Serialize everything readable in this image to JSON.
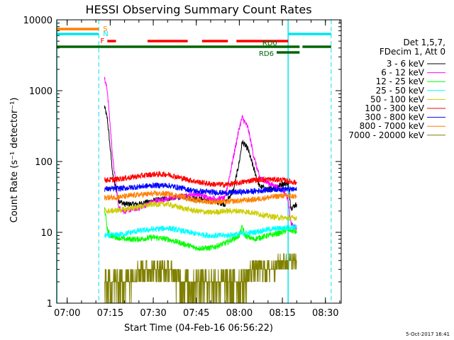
{
  "chart_data": {
    "type": "line",
    "title": "HESSI Observing Summary Count Rates",
    "ylabel": "Count Rate (s⁻¹ detector⁻¹)",
    "xlabel": "Start Time (04-Feb-16 06:56:22)",
    "y_scale": "log",
    "ylim": [
      1,
      10000
    ],
    "xlim": [
      "06:56:22",
      "08:35:30"
    ],
    "grid": false,
    "legend_position": "right",
    "x_ticks": [
      "07:00",
      "07:15",
      "07:30",
      "07:45",
      "08:00",
      "08:15",
      "08:30"
    ],
    "y_ticks": [
      "1",
      "10",
      "100",
      "1000",
      "10000"
    ],
    "legend_header": [
      "Det 1,5,7,",
      "FDecim 1, Att 0"
    ],
    "footer_date": "5-Oct-2017 16:41",
    "state_bars": [
      {
        "label": "S",
        "color": "#ff7f00",
        "segments": [
          [
            "06:56:22",
            "07:11:00"
          ]
        ]
      },
      {
        "label": "N",
        "color": "#00e5ee",
        "segments": [
          [
            "06:56:22",
            "07:11:00"
          ],
          [
            "08:17:00",
            "08:32:00"
          ]
        ]
      },
      {
        "label": "F",
        "color": "#ff0000",
        "segments": [
          [
            "07:14:00",
            "07:17:00"
          ],
          [
            "07:28:00",
            "07:42:00"
          ],
          [
            "07:47:00",
            "07:56:00"
          ],
          [
            "07:59:00",
            "08:17:00"
          ]
        ]
      },
      {
        "label": "RD0",
        "color": "#006400",
        "segments": [
          [
            "06:56:22",
            "08:21:00"
          ],
          [
            "08:22:00",
            "08:32:00"
          ]
        ]
      },
      {
        "label": "RD6",
        "color": "#006400",
        "segments": [
          [
            "08:13:00",
            "08:21:00"
          ]
        ]
      }
    ],
    "night_boundaries": [
      "06:56:22",
      "08:17:00"
    ],
    "saa_boundaries": [
      "07:11:00",
      "08:32:00"
    ],
    "series": [
      {
        "name": "3 - 6 keV",
        "color": "#000000",
        "x": [
          "07:13",
          "07:14",
          "07:16",
          "07:18",
          "07:20",
          "07:25",
          "07:30",
          "07:35",
          "07:40",
          "07:45",
          "07:50",
          "07:55",
          "07:58",
          "08:00",
          "08:01",
          "08:03",
          "08:05",
          "08:07",
          "08:10",
          "08:15",
          "08:17",
          "08:18",
          "08:20"
        ],
        "values": [
          600,
          400,
          60,
          28,
          25,
          25,
          28,
          30,
          32,
          30,
          28,
          25,
          40,
          100,
          190,
          150,
          80,
          45,
          40,
          48,
          50,
          22,
          25
        ]
      },
      {
        "name": "6 - 12 keV",
        "color": "#ff00ff",
        "x": [
          "07:13",
          "07:14",
          "07:16",
          "07:18",
          "07:20",
          "07:25",
          "07:30",
          "07:35",
          "07:40",
          "07:45",
          "07:50",
          "07:55",
          "07:58",
          "08:00",
          "08:01",
          "08:03",
          "08:05",
          "08:07",
          "08:10",
          "08:15",
          "08:17",
          "08:18",
          "08:20"
        ],
        "values": [
          1500,
          1000,
          100,
          22,
          20,
          22,
          27,
          30,
          32,
          35,
          30,
          30,
          120,
          300,
          420,
          300,
          120,
          60,
          50,
          40,
          30,
          13,
          11
        ]
      },
      {
        "name": "12 - 25 keV",
        "color": "#00ff00",
        "x": [
          "07:13",
          "07:14",
          "07:15",
          "07:20",
          "07:25",
          "07:30",
          "07:35",
          "07:40",
          "07:45",
          "07:50",
          "07:55",
          "08:00",
          "08:01",
          "08:02",
          "08:05",
          "08:10",
          "08:15",
          "08:17",
          "08:20"
        ],
        "values": [
          22,
          11,
          9,
          8,
          8,
          8.5,
          8,
          7,
          6,
          6,
          7,
          9,
          12,
          9,
          8,
          9,
          10,
          11,
          10
        ]
      },
      {
        "name": "25 - 50 keV",
        "color": "#00ffff",
        "x": [
          "07:13",
          "07:15",
          "07:20",
          "07:25",
          "07:30",
          "07:35",
          "07:40",
          "07:45",
          "07:50",
          "07:55",
          "08:00",
          "08:05",
          "08:10",
          "08:15",
          "08:20"
        ],
        "values": [
          9,
          9,
          9.5,
          10.5,
          11,
          11.5,
          10.5,
          9.5,
          9,
          9,
          9.5,
          10,
          11,
          11.5,
          12
        ]
      },
      {
        "name": "50 - 100 keV",
        "color": "#cdcd00",
        "x": [
          "07:13",
          "07:15",
          "07:20",
          "07:25",
          "07:30",
          "07:35",
          "07:40",
          "07:45",
          "07:50",
          "07:55",
          "08:00",
          "08:05",
          "08:10",
          "08:15",
          "08:20"
        ],
        "values": [
          20,
          20,
          21,
          23,
          25,
          25,
          22,
          20,
          19,
          20,
          20,
          19,
          17,
          16,
          16
        ]
      },
      {
        "name": "100 - 300 keV",
        "color": "#ff0000",
        "x": [
          "07:13",
          "07:15",
          "07:20",
          "07:25",
          "07:30",
          "07:35",
          "07:40",
          "07:45",
          "07:50",
          "07:55",
          "08:00",
          "08:05",
          "08:10",
          "08:15",
          "08:20"
        ],
        "values": [
          55,
          55,
          58,
          62,
          66,
          66,
          58,
          52,
          48,
          47,
          50,
          55,
          56,
          55,
          50
        ]
      },
      {
        "name": "300 - 800 keV",
        "color": "#0000ff",
        "x": [
          "07:13",
          "07:15",
          "07:20",
          "07:25",
          "07:30",
          "07:35",
          "07:40",
          "07:45",
          "07:50",
          "07:55",
          "08:00",
          "08:05",
          "08:10",
          "08:15",
          "08:20"
        ],
        "values": [
          41,
          41,
          42,
          44,
          46,
          46,
          42,
          38,
          37,
          36,
          37,
          38,
          40,
          41,
          40
        ]
      },
      {
        "name": "800 - 7000 keV",
        "color": "#ff7f00",
        "x": [
          "07:13",
          "07:15",
          "07:20",
          "07:25",
          "07:30",
          "07:35",
          "07:40",
          "07:45",
          "07:50",
          "07:55",
          "08:00",
          "08:05",
          "08:10",
          "08:15",
          "08:20"
        ],
        "values": [
          31,
          31,
          32,
          34,
          35,
          35,
          32,
          28,
          27,
          27,
          28,
          29,
          31,
          33,
          32
        ]
      },
      {
        "name": "7000 - 20000 keV",
        "color": "#808000",
        "x": [
          "07:13",
          "07:15",
          "07:20",
          "07:25",
          "07:30",
          "07:35",
          "07:40",
          "07:45",
          "07:50",
          "07:55",
          "08:00",
          "08:05",
          "08:10",
          "08:15",
          "08:20"
        ],
        "values": [
          2,
          2,
          2,
          3,
          3,
          3,
          2,
          2,
          2,
          2,
          2,
          3,
          3,
          4,
          4
        ]
      }
    ]
  }
}
